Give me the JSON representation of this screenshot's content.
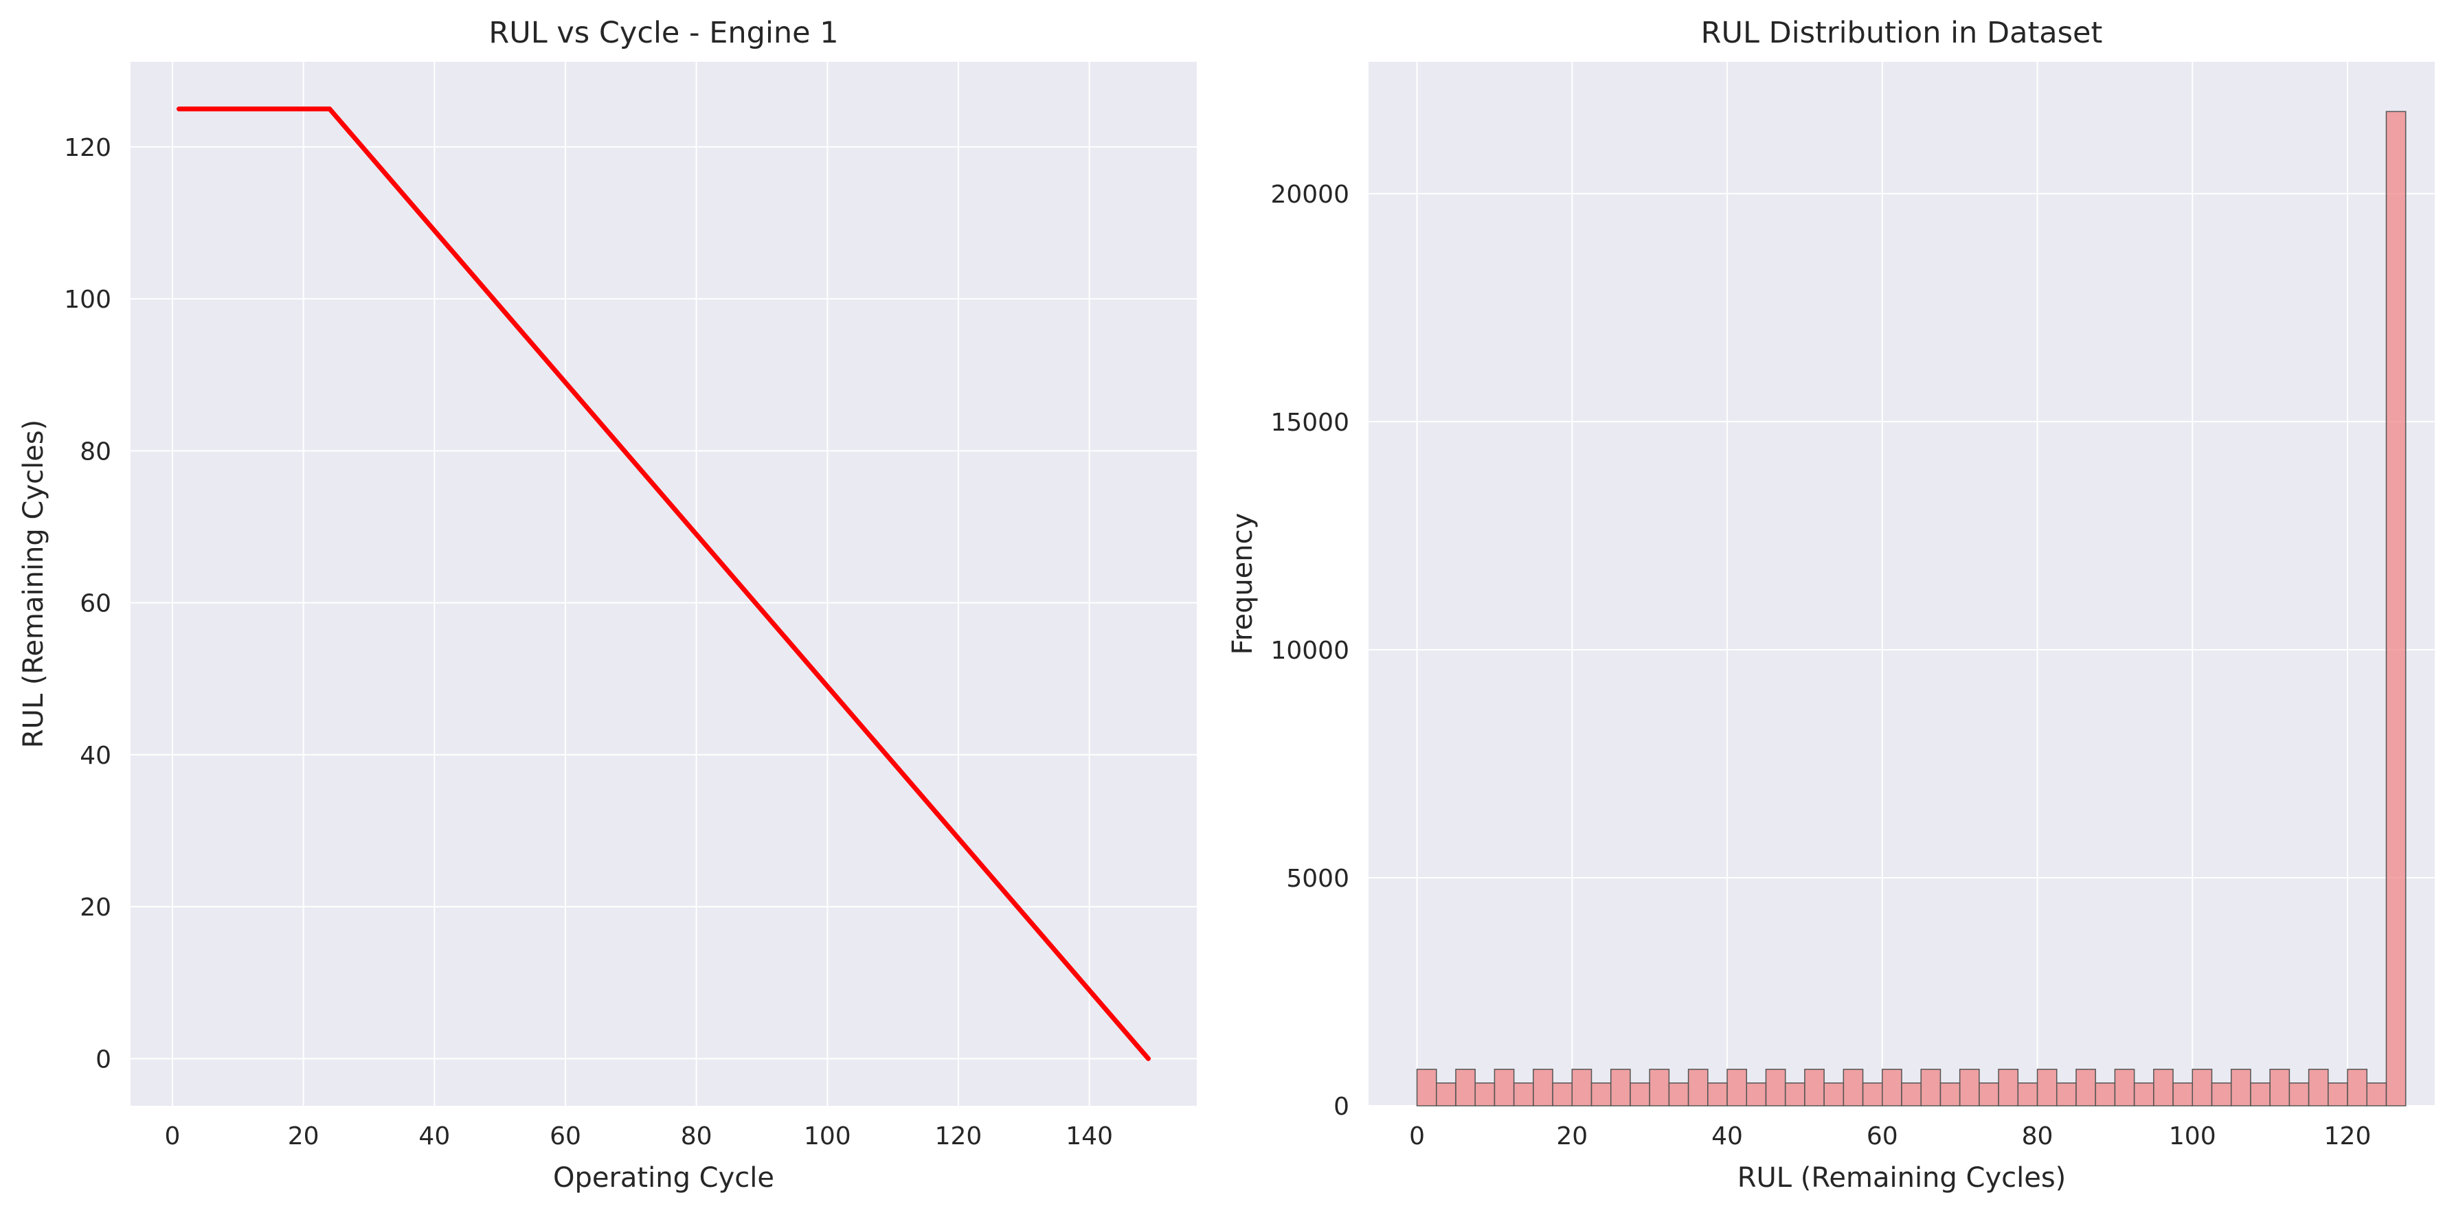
{
  "chart_data": [
    {
      "type": "line",
      "title": "RUL vs Cycle - Engine 1",
      "xlabel": "Operating Cycle",
      "ylabel": "RUL (Remaining Cycles)",
      "xlim": [
        -6.4,
        156.4
      ],
      "ylim": [
        -6.2,
        131.2
      ],
      "xticks": [
        0,
        20,
        40,
        60,
        80,
        100,
        120,
        140
      ],
      "yticks": [
        0,
        20,
        40,
        60,
        80,
        100,
        120
      ],
      "grid": true,
      "series": [
        {
          "color": "#ff0000",
          "x": [
            1,
            24,
            149
          ],
          "y": [
            125,
            125,
            0
          ]
        }
      ]
    },
    {
      "type": "bar",
      "subtype": "histogram",
      "title": "RUL Distribution in Dataset",
      "xlabel": "RUL (Remaining Cycles)",
      "ylabel": "Frequency",
      "xlim": [
        -6.25,
        131.25
      ],
      "ylim": [
        0,
        22890
      ],
      "xticks": [
        0,
        20,
        40,
        60,
        80,
        100,
        120
      ],
      "yticks": [
        0,
        5000,
        10000,
        15000,
        20000
      ],
      "grid": true,
      "bin_start": 0,
      "bin_width": 2.5,
      "color": "#f08080",
      "values": [
        800,
        500,
        800,
        500,
        800,
        500,
        800,
        500,
        800,
        500,
        800,
        500,
        800,
        500,
        800,
        500,
        800,
        500,
        800,
        500,
        800,
        500,
        800,
        500,
        800,
        500,
        800,
        500,
        800,
        500,
        800,
        500,
        800,
        500,
        800,
        500,
        800,
        500,
        800,
        500,
        800,
        500,
        800,
        500,
        800,
        500,
        800,
        500,
        800,
        500,
        21800
      ]
    }
  ]
}
